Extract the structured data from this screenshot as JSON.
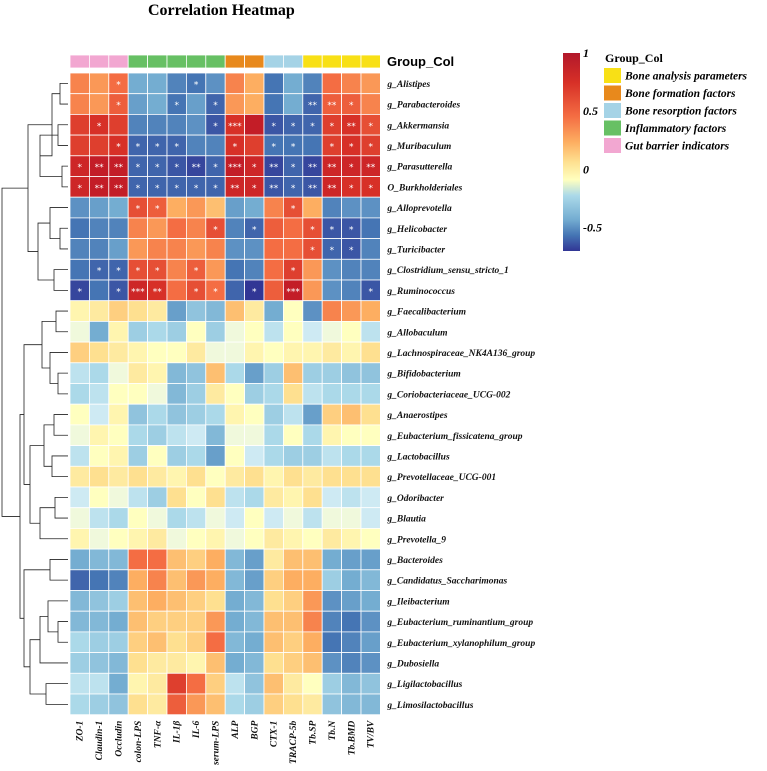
{
  "chart_data": {
    "type": "heatmap",
    "title": "Correlation Heatmap",
    "group_col_label": "Group_Col",
    "legend_title": "Group_Col",
    "groups": [
      {
        "name": "Bone analysis parameters",
        "color": "#f8e016"
      },
      {
        "name": "Bone formation factors",
        "color": "#e8891c"
      },
      {
        "name": "Bone resorption factors",
        "color": "#a5d3e6"
      },
      {
        "name": "Inflammatory factors",
        "color": "#67c064"
      },
      {
        "name": "Gut barrier indicators",
        "color": "#f2a7d1"
      }
    ],
    "colorbar": {
      "min": -0.7,
      "max": 1,
      "ticks": [
        {
          "label": "1",
          "value": 1
        },
        {
          "label": "0.5",
          "value": 0.5
        },
        {
          "label": "0",
          "value": 0
        },
        {
          "label": "-0.5",
          "value": -0.5
        }
      ]
    },
    "columns": [
      "ZO-1",
      "Claudin-1",
      "Occludin",
      "colon-LPS",
      "TNF-α",
      "IL-1β",
      "IL-6",
      "serum-LPS",
      "ALP",
      "BGP",
      "CTX-1",
      "TRACP-5b",
      "Tb.SP",
      "Tb.N",
      "Tb.BMD",
      "TV/BV"
    ],
    "column_groups": [
      "Gut barrier indicators",
      "Gut barrier indicators",
      "Gut barrier indicators",
      "Inflammatory factors",
      "Inflammatory factors",
      "Inflammatory factors",
      "Inflammatory factors",
      "Inflammatory factors",
      "Bone formation factors",
      "Bone formation factors",
      "Bone resorption factors",
      "Bone resorption factors",
      "Bone analysis parameters",
      "Bone analysis parameters",
      "Bone analysis parameters",
      "Bone analysis parameters"
    ],
    "rows": [
      "g_Alistipes",
      "g_Parabacteroides",
      "g_Akkermansia",
      "g_Muribaculum",
      "g_Parasutterella",
      "O_Burkholderiales",
      "g_Alloprevotella",
      "g_Helicobacter",
      "g_Turicibacter",
      "g_Clostridium_sensu_stricto_1",
      "g_Ruminococcus",
      "g_Faecalibacterium",
      "g_Allobaculum",
      "g_Lachnospiraceae_NK4A136_group",
      "g_Bifidobacterium",
      "g_Coriobacteriaceae_UCG-002",
      "g_Anaerostipes",
      "g_Eubacterium_fissicatena_group",
      "g_Lactobacillus",
      "g_Prevotellaceae_UCG-001",
      "g_Odoribacter",
      "g_Blautia",
      "g_Prevotella_9",
      "g_Bacteroides",
      "g_Candidatus_Saccharimonas",
      "g_Ileibacterium",
      "g_Eubacterium_ruminantium_group",
      "g_Eubacterium_xylanophilum_group",
      "g_Dubosiella",
      "g_Ligilactobacillus",
      "g_Limosilactobacillus"
    ],
    "values": [
      [
        0.5,
        0.45,
        0.55,
        -0.35,
        -0.35,
        -0.5,
        -0.55,
        -0.45,
        0.5,
        0.4,
        -0.55,
        -0.35,
        -0.5,
        0.55,
        0.5,
        0.45
      ],
      [
        0.5,
        0.45,
        0.6,
        -0.4,
        -0.35,
        -0.55,
        -0.4,
        -0.6,
        0.45,
        0.4,
        -0.55,
        -0.35,
        -0.6,
        0.6,
        0.6,
        0.5
      ],
      [
        0.7,
        0.75,
        0.7,
        -0.5,
        -0.5,
        -0.5,
        -0.45,
        -0.65,
        0.75,
        0.85,
        -0.65,
        -0.6,
        -0.6,
        0.7,
        0.75,
        0.65
      ],
      [
        0.7,
        0.7,
        0.75,
        -0.6,
        -0.6,
        -0.6,
        -0.5,
        -0.5,
        0.75,
        0.7,
        -0.55,
        -0.55,
        -0.55,
        0.7,
        0.75,
        0.7
      ],
      [
        0.8,
        0.85,
        0.85,
        -0.6,
        -0.6,
        -0.65,
        -0.7,
        -0.6,
        0.85,
        0.8,
        -0.7,
        -0.6,
        -0.7,
        0.8,
        0.8,
        0.8
      ],
      [
        0.8,
        0.85,
        0.85,
        -0.6,
        -0.6,
        -0.6,
        -0.6,
        -0.6,
        0.8,
        0.8,
        -0.65,
        -0.6,
        -0.65,
        0.8,
        0.75,
        0.75
      ],
      [
        -0.45,
        -0.4,
        -0.35,
        0.65,
        0.6,
        0.4,
        0.45,
        0.35,
        -0.4,
        -0.35,
        0.5,
        0.65,
        0.4,
        -0.5,
        -0.45,
        -0.45
      ],
      [
        -0.55,
        -0.5,
        -0.5,
        0.5,
        0.45,
        0.55,
        0.5,
        0.65,
        -0.5,
        -0.6,
        0.6,
        0.55,
        0.65,
        -0.65,
        -0.65,
        -0.55
      ],
      [
        -0.5,
        -0.5,
        -0.4,
        0.45,
        0.5,
        0.5,
        0.45,
        0.5,
        -0.45,
        -0.45,
        0.55,
        0.55,
        0.65,
        -0.6,
        -0.65,
        -0.5
      ],
      [
        -0.55,
        -0.6,
        -0.6,
        0.65,
        0.65,
        0.5,
        0.6,
        0.45,
        -0.55,
        -0.5,
        0.55,
        0.7,
        0.45,
        -0.45,
        -0.5,
        -0.5
      ],
      [
        -0.7,
        -0.55,
        -0.65,
        0.8,
        0.75,
        0.55,
        0.65,
        0.55,
        -0.6,
        -0.75,
        0.6,
        0.85,
        0.45,
        -0.45,
        -0.5,
        -0.65
      ],
      [
        0.15,
        0.2,
        0.3,
        0.25,
        0.2,
        -0.4,
        -0.25,
        -0.3,
        0.35,
        0.2,
        -0.35,
        0.1,
        -0.45,
        0.5,
        0.45,
        0.4
      ],
      [
        0.05,
        -0.35,
        0.15,
        -0.2,
        -0.15,
        -0.2,
        0.1,
        -0.2,
        0.05,
        0.1,
        -0.1,
        0.1,
        -0.05,
        0.05,
        0.1,
        -0.1
      ],
      [
        0.3,
        0.25,
        0.2,
        0.15,
        0.1,
        0.1,
        0.2,
        0.05,
        0.05,
        0.15,
        0.1,
        0.15,
        0.15,
        0.2,
        0.15,
        0.25
      ],
      [
        -0.1,
        -0.15,
        0.05,
        0.2,
        0.15,
        -0.3,
        -0.25,
        0.35,
        -0.15,
        -0.4,
        -0.2,
        0.35,
        -0.2,
        -0.2,
        -0.25,
        -0.25
      ],
      [
        -0.15,
        -0.1,
        0.1,
        0.1,
        0.05,
        -0.3,
        -0.2,
        0.2,
        0.1,
        -0.2,
        -0.15,
        0.25,
        -0.1,
        -0.15,
        -0.15,
        -0.15
      ],
      [
        0.1,
        -0.05,
        0.15,
        -0.25,
        -0.15,
        -0.25,
        -0.2,
        -0.15,
        0.15,
        0.1,
        -0.2,
        -0.1,
        -0.4,
        0.3,
        0.35,
        0.25
      ],
      [
        0.05,
        0.15,
        0.1,
        -0.15,
        -0.2,
        -0.1,
        -0.05,
        -0.3,
        0.05,
        0.05,
        -0.15,
        0.1,
        -0.15,
        0.15,
        0.1,
        0.1
      ],
      [
        -0.1,
        0.1,
        0.15,
        -0.2,
        0.1,
        -0.2,
        -0.15,
        -0.4,
        0.1,
        -0.05,
        -0.15,
        -0.2,
        -0.2,
        -0.1,
        -0.15,
        -0.15
      ],
      [
        0.2,
        0.25,
        0.2,
        0.25,
        0.2,
        0.15,
        0.25,
        0.1,
        0.2,
        0.25,
        0.15,
        0.25,
        0.2,
        0.25,
        0.25,
        0.25
      ],
      [
        -0.05,
        0.1,
        0.05,
        -0.1,
        -0.2,
        0.25,
        0.1,
        0.25,
        -0.1,
        -0.15,
        0.2,
        0.15,
        0.25,
        -0.05,
        -0.1,
        -0.05
      ],
      [
        0.05,
        -0.1,
        -0.15,
        0.1,
        0.05,
        -0.15,
        -0.1,
        0.05,
        -0.05,
        0.1,
        -0.05,
        0.05,
        -0.1,
        0.05,
        0.05,
        -0.05
      ],
      [
        0.15,
        0.05,
        0.1,
        0.15,
        0.2,
        0.05,
        0.1,
        0.15,
        0.05,
        0.1,
        0.2,
        0.15,
        0.1,
        0.2,
        0.15,
        0.1
      ],
      [
        -0.35,
        -0.3,
        -0.3,
        0.55,
        0.55,
        0.35,
        0.3,
        0.4,
        -0.3,
        -0.4,
        0.2,
        0.35,
        0.35,
        -0.35,
        -0.4,
        -0.4
      ],
      [
        -0.6,
        -0.55,
        -0.5,
        0.4,
        0.5,
        0.35,
        0.45,
        0.4,
        -0.3,
        -0.4,
        0.3,
        0.4,
        0.4,
        -0.2,
        -0.35,
        -0.3
      ],
      [
        -0.3,
        -0.25,
        -0.2,
        0.35,
        0.4,
        0.35,
        0.3,
        0.25,
        -0.35,
        -0.3,
        0.25,
        0.3,
        0.45,
        -0.45,
        -0.4,
        -0.35
      ],
      [
        -0.3,
        -0.3,
        -0.35,
        0.35,
        0.3,
        0.3,
        0.3,
        0.45,
        -0.35,
        -0.3,
        0.35,
        0.35,
        0.5,
        -0.5,
        -0.55,
        -0.45
      ],
      [
        -0.15,
        -0.2,
        -0.2,
        0.3,
        0.35,
        0.25,
        0.3,
        0.55,
        -0.3,
        -0.35,
        0.35,
        0.3,
        0.4,
        -0.55,
        -0.5,
        -0.4
      ],
      [
        -0.2,
        -0.25,
        -0.3,
        0.25,
        0.2,
        0.2,
        0.15,
        0.35,
        -0.35,
        -0.3,
        0.25,
        0.3,
        0.35,
        -0.45,
        -0.5,
        -0.45
      ],
      [
        -0.1,
        -0.1,
        -0.35,
        0.15,
        0.2,
        0.7,
        0.55,
        0.3,
        -0.1,
        -0.25,
        0.35,
        0.2,
        0.1,
        -0.2,
        -0.3,
        -0.25
      ],
      [
        -0.15,
        -0.2,
        -0.25,
        0.25,
        0.2,
        0.6,
        0.45,
        0.35,
        -0.15,
        -0.2,
        0.3,
        0.25,
        0.2,
        -0.25,
        -0.3,
        -0.3
      ]
    ],
    "significance": [
      [
        "",
        "",
        "*",
        "",
        "",
        "",
        "*",
        "",
        "",
        "",
        "",
        "",
        "",
        "",
        "",
        ""
      ],
      [
        "",
        "",
        "*",
        "",
        "",
        "*",
        "",
        "*",
        "",
        "",
        "",
        "",
        "**",
        "**",
        "*",
        ""
      ],
      [
        "",
        "*",
        "",
        "",
        "",
        "",
        "",
        "*",
        "***",
        "",
        "*",
        "*",
        "*",
        "*",
        "**",
        "*"
      ],
      [
        "",
        "",
        "*",
        "*",
        "*",
        "*",
        "",
        "",
        "*",
        "",
        "*",
        "*",
        "",
        "*",
        "*",
        "*"
      ],
      [
        "*",
        "**",
        "**",
        "*",
        "*",
        "*",
        "**",
        "*",
        "***",
        "*",
        "**",
        "*",
        "**",
        "**",
        "*",
        "**"
      ],
      [
        "*",
        "**",
        "**",
        "*",
        "*",
        "*",
        "*",
        "*",
        "**",
        "*",
        "**",
        "*",
        "**",
        "**",
        "*",
        "*"
      ],
      [
        "",
        "",
        "",
        "*",
        "*",
        "",
        "",
        "",
        "",
        "",
        "",
        "*",
        "",
        "",
        "",
        ""
      ],
      [
        "",
        "",
        "",
        "",
        "",
        "",
        "",
        "*",
        "",
        "*",
        "",
        "",
        "*",
        "*",
        "*",
        ""
      ],
      [
        "",
        "",
        "",
        "",
        "",
        "",
        "",
        "",
        "",
        "",
        "",
        "",
        "*",
        "*",
        "*",
        ""
      ],
      [
        "",
        "*",
        "*",
        "*",
        "*",
        "",
        "*",
        "",
        "",
        "",
        "",
        "*",
        "",
        "",
        "",
        ""
      ],
      [
        "*",
        "",
        "*",
        "***",
        "**",
        "",
        "*",
        "*",
        "",
        "*",
        "",
        "***",
        "",
        "",
        "",
        "*"
      ],
      [
        "",
        "",
        "",
        "",
        "",
        "",
        "",
        "",
        "",
        "",
        "",
        "",
        "",
        "",
        "",
        ""
      ],
      [
        "",
        "",
        "",
        "",
        "",
        "",
        "",
        "",
        "",
        "",
        "",
        "",
        "",
        "",
        "",
        ""
      ],
      [
        "",
        "",
        "",
        "",
        "",
        "",
        "",
        "",
        "",
        "",
        "",
        "",
        "",
        "",
        "",
        ""
      ],
      [
        "",
        "",
        "",
        "",
        "",
        "",
        "",
        "",
        "",
        "",
        "",
        "",
        "",
        "",
        "",
        ""
      ],
      [
        "",
        "",
        "",
        "",
        "",
        "",
        "",
        "",
        "",
        "",
        "",
        "",
        "",
        "",
        "",
        ""
      ],
      [
        "",
        "",
        "",
        "",
        "",
        "",
        "",
        "",
        "",
        "",
        "",
        "",
        "",
        "",
        "",
        ""
      ],
      [
        "",
        "",
        "",
        "",
        "",
        "",
        "",
        "",
        "",
        "",
        "",
        "",
        "",
        "",
        "",
        ""
      ],
      [
        "",
        "",
        "",
        "",
        "",
        "",
        "",
        "",
        "",
        "",
        "",
        "",
        "",
        "",
        "",
        ""
      ],
      [
        "",
        "",
        "",
        "",
        "",
        "",
        "",
        "",
        "",
        "",
        "",
        "",
        "",
        "",
        "",
        ""
      ],
      [
        "",
        "",
        "",
        "",
        "",
        "",
        "",
        "",
        "",
        "",
        "",
        "",
        "",
        "",
        "",
        ""
      ],
      [
        "",
        "",
        "",
        "",
        "",
        "",
        "",
        "",
        "",
        "",
        "",
        "",
        "",
        "",
        "",
        ""
      ],
      [
        "",
        "",
        "",
        "",
        "",
        "",
        "",
        "",
        "",
        "",
        "",
        "",
        "",
        "",
        "",
        ""
      ],
      [
        "",
        "",
        "",
        "",
        "",
        "",
        "",
        "",
        "",
        "",
        "",
        "",
        "",
        "",
        "",
        ""
      ],
      [
        "",
        "",
        "",
        "",
        "",
        "",
        "",
        "",
        "",
        "",
        "",
        "",
        "",
        "",
        "",
        ""
      ],
      [
        "",
        "",
        "",
        "",
        "",
        "",
        "",
        "",
        "",
        "",
        "",
        "",
        "",
        "",
        "",
        ""
      ],
      [
        "",
        "",
        "",
        "",
        "",
        "",
        "",
        "",
        "",
        "",
        "",
        "",
        "",
        "",
        "",
        ""
      ],
      [
        "",
        "",
        "",
        "",
        "",
        "",
        "",
        "",
        "",
        "",
        "",
        "",
        "",
        "",
        "",
        ""
      ],
      [
        "",
        "",
        "",
        "",
        "",
        "",
        "",
        "",
        "",
        "",
        "",
        "",
        "",
        "",
        "",
        ""
      ],
      [
        "",
        "",
        "",
        "",
        "",
        "",
        "",
        "",
        "",
        "",
        "",
        "",
        "",
        "",
        "",
        ""
      ],
      [
        "",
        "",
        "",
        "",
        "",
        "",
        "",
        "",
        "",
        "",
        "",
        "",
        "",
        "",
        "",
        ""
      ]
    ]
  }
}
